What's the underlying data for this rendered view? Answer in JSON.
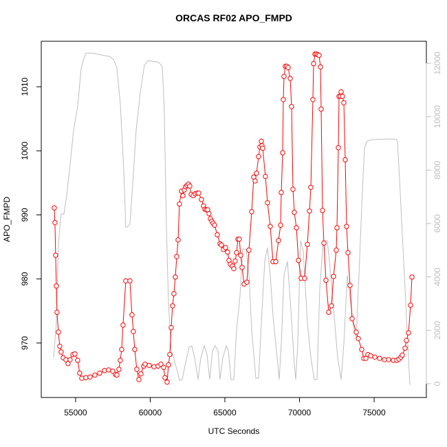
{
  "chart_data": {
    "type": "line",
    "title": "ORCAS RF02 APO_FMPD",
    "x_label": "UTC Seconds",
    "y_label": "APO_FMPD",
    "xlim": [
      52700,
      78500
    ],
    "ylim": [
      961.5,
      1017.1
    ],
    "y2lim": [
      -515,
      12824
    ],
    "xticks": [
      55000,
      60000,
      65000,
      70000,
      75000
    ],
    "yticks": [
      970,
      980,
      990,
      1000,
      1010
    ],
    "y2ticks": [
      0,
      2000,
      4000,
      6000,
      8000,
      10000,
      12000
    ],
    "series": [
      {
        "color": "#bebebe",
        "axis": "y2",
        "markers": false,
        "x": [
          53525,
          53710,
          53848,
          53986,
          54032,
          54217,
          54401,
          54677,
          54862,
          55138,
          55369,
          55507,
          55691,
          56106,
          57304,
          57534,
          57765,
          57995,
          58226,
          58364,
          58456,
          58640,
          58825,
          59055,
          59332,
          59608,
          59838,
          60530,
          60806,
          60944,
          61083,
          61221,
          61405,
          61543,
          61682,
          61820,
          61958,
          62142,
          62373,
          62603,
          62788,
          62972,
          63202,
          63387,
          63617,
          63801,
          63986,
          64170,
          64354,
          64539,
          64676,
          64861,
          65092,
          65230,
          65414,
          65598,
          65783,
          66013,
          66197,
          66428,
          66612,
          66796,
          67073,
          67257,
          67442,
          67672,
          67856,
          68041,
          68225,
          68501,
          68640,
          68778,
          68962,
          69193,
          69423,
          69653,
          69746,
          69884,
          70068,
          70252,
          70529,
          70759,
          70990,
          71174,
          71358,
          71589,
          71865,
          72096,
          72326,
          72556,
          72787,
          72971,
          73202,
          73432,
          73616,
          73800,
          73985,
          74169,
          74353,
          74538,
          74814,
          75736,
          76473,
          76566,
          76704,
          76888,
          77072,
          77257,
          77395
        ],
        "values": [
          978,
          2265,
          5225,
          6126,
          6358,
          6358,
          7027,
          8443,
          9472,
          10373,
          11789,
          12098,
          12381,
          12381,
          12252,
          12149,
          11840,
          10502,
          8057,
          5869,
          5869,
          5972,
          7413,
          9472,
          10888,
          11918,
          12098,
          12046,
          11892,
          10244,
          5869,
          3037,
          1236,
          1030,
          721,
          463,
          129,
          154,
          798,
          1364,
          1416,
          978,
          154,
          978,
          1416,
          1107,
          154,
          1236,
          1416,
          1236,
          154,
          978,
          1416,
          1236,
          154,
          154,
          2008,
          3295,
          5045,
          5045,
          4067,
          2008,
          206,
          206,
          2265,
          4582,
          5097,
          4067,
          2523,
          978,
          154,
          1493,
          4067,
          4582,
          2780,
          721,
          154,
          1493,
          5354,
          4968,
          2265,
          978,
          154,
          154,
          3552,
          5354,
          5354,
          4067,
          2523,
          978,
          154,
          1493,
          4067,
          3037,
          2136,
          1750,
          4067,
          6641,
          8829,
          9086,
          9138,
          9163,
          9163,
          9060,
          7670,
          5611,
          3552,
          1493,
          -51
        ]
      },
      {
        "color": "#ff0000",
        "axis": "y",
        "markers": true,
        "x": [
          53571,
          53618,
          53664,
          53710,
          53756,
          53848,
          53940,
          54032,
          54171,
          54355,
          54493,
          54631,
          54816,
          54954,
          55138,
          55276,
          55415,
          55691,
          55968,
          56290,
          56613,
          56935,
          57212,
          57488,
          57673,
          57765,
          57903,
          57995,
          58087,
          58180,
          58364,
          58640,
          58779,
          58871,
          58963,
          59101,
          59239,
          59378,
          59562,
          59654,
          59930,
          60253,
          60530,
          60714,
          60898,
          60990,
          61129,
          61221,
          61313,
          61405,
          61497,
          61589,
          61682,
          61774,
          61866,
          61958,
          62096,
          62188,
          62280,
          62373,
          62465,
          62557,
          62649,
          62741,
          62880,
          63018,
          63156,
          63248,
          63432,
          63571,
          63663,
          63755,
          63847,
          63939,
          64032,
          64124,
          64216,
          64308,
          64492,
          64676,
          64768,
          64907,
          65045,
          65183,
          65276,
          65368,
          65506,
          65598,
          65690,
          65783,
          65875,
          65967,
          66059,
          66152,
          66290,
          66474,
          66612,
          66796,
          66935,
          67027,
          67119,
          67257,
          67350,
          67442,
          67488,
          67534,
          67718,
          67856,
          68041,
          68225,
          68409,
          68593,
          68731,
          68778,
          68870,
          68916,
          68962,
          69054,
          69146,
          69238,
          69377,
          69469,
          69561,
          69653,
          69791,
          69930,
          70114,
          70344,
          70529,
          70667,
          70759,
          70898,
          70944,
          71036,
          71128,
          71220,
          71312,
          71404,
          71450,
          71543,
          71635,
          71773,
          71957,
          72141,
          72280,
          72464,
          72510,
          72602,
          72648,
          72740,
          72786,
          72878,
          72971,
          73063,
          73155,
          73247,
          73386,
          73524,
          73800,
          73939,
          74169,
          74307,
          74446,
          74584,
          74768,
          75045,
          75367,
          75690,
          75966,
          76289,
          76519,
          76658,
          76796,
          76888,
          77072,
          77164,
          77302,
          77441,
          77533
        ],
        "values": [
          991.1,
          988.8,
          983.7,
          978.9,
          974.8,
          971.7,
          969.5,
          968.6,
          967.7,
          967.4,
          966.8,
          967.4,
          968.2,
          968.3,
          967.3,
          965.3,
          964.5,
          964.6,
          964.7,
          965.0,
          965.3,
          965.7,
          965.8,
          965.6,
          965.1,
          965.0,
          965.9,
          967.3,
          969.0,
          972.8,
          979.7,
          979.7,
          974.4,
          971.8,
          969.0,
          965.9,
          964.3,
          965.2,
          966.4,
          966.7,
          966.5,
          966.3,
          966.4,
          966.7,
          966.2,
          964.6,
          963.9,
          966.6,
          968.2,
          972.4,
          975.8,
          977.7,
          980.3,
          983.5,
          986.1,
          991.7,
          993.7,
          993.0,
          993.9,
          994.4,
          994.6,
          994.8,
          994.5,
          993.2,
          993.0,
          993.3,
          993.4,
          993.4,
          992.4,
          991.4,
          990.9,
          990.8,
          990.8,
          990.2,
          989.4,
          989.0,
          988.7,
          988.4,
          986.9,
          985.5,
          985.3,
          984.6,
          984.9,
          984.2,
          982.9,
          982.3,
          982.0,
          981.6,
          982.8,
          984.1,
          986.2,
          986.2,
          983.7,
          981.8,
          979.2,
          979.5,
          984.5,
          990.5,
          995.9,
          995.3,
          996.5,
          999.1,
          1000.6,
          1001.5,
          1000.8,
          1000.4,
          996.0,
          991.9,
          988.2,
          982.7,
          982.7,
          986.0,
          988.4,
          993.5,
          999.7,
          1008.0,
          1011.6,
          1013.2,
          1013.2,
          1013.0,
          1011.3,
          1006.9,
          994.0,
          990.4,
          988.0,
          982.9,
          980.1,
          980.1,
          985.4,
          990.6,
          994.3,
          1008.0,
          1013.6,
          1015.1,
          1015.1,
          1015.0,
          1014.9,
          1013.1,
          1006.5,
          990.7,
          985.6,
          979.8,
          974.8,
          975.8,
          980.4,
          984.5,
          988.0,
          1000.5,
          1008.5,
          1008.5,
          1009.2,
          1008.5,
          1007.5,
          998.6,
          988.2,
          984.1,
          979.0,
          973.8,
          971.7,
          970.7,
          969.0,
          967.6,
          967.6,
          968.2,
          968.0,
          967.8,
          967.6,
          967.4,
          967.4,
          967.3,
          967.3,
          967.5,
          967.8,
          968.1,
          969.2,
          970.4,
          971.6,
          975.9,
          980.3
        ]
      }
    ]
  }
}
